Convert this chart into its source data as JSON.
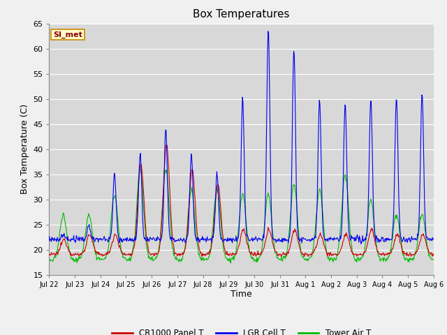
{
  "title": "Box Temperatures",
  "xlabel": "Time",
  "ylabel": "Box Temperature (C)",
  "ylim": [
    15,
    65
  ],
  "yticks": [
    15,
    20,
    25,
    30,
    35,
    40,
    45,
    50,
    55,
    60,
    65
  ],
  "plot_bg_color": "#d8d8d8",
  "grid_color": "#ffffff",
  "line_colors": {
    "red": "#cc0000",
    "blue": "#0000ee",
    "green": "#00bb00"
  },
  "legend_labels": [
    "CR1000 Panel T",
    "LGR Cell T",
    "Tower Air T"
  ],
  "annotation_text": "SI_met",
  "annotation_bg": "#ffffcc",
  "annotation_border": "#cc8800",
  "title_fontsize": 11,
  "label_fontsize": 9,
  "tick_fontsize": 8,
  "xtick_labels": [
    "Jul 22",
    "Jul 23",
    "Jul 24",
    "Jul 25",
    "Jul 26",
    "Jul 27",
    "Jul 28",
    "Jul 29",
    "Jul 30",
    "Jul 31",
    "Aug 1",
    "Aug 2",
    "Aug 3",
    "Aug 4",
    "Aug 5",
    "Aug 6"
  ],
  "num_days": 15
}
